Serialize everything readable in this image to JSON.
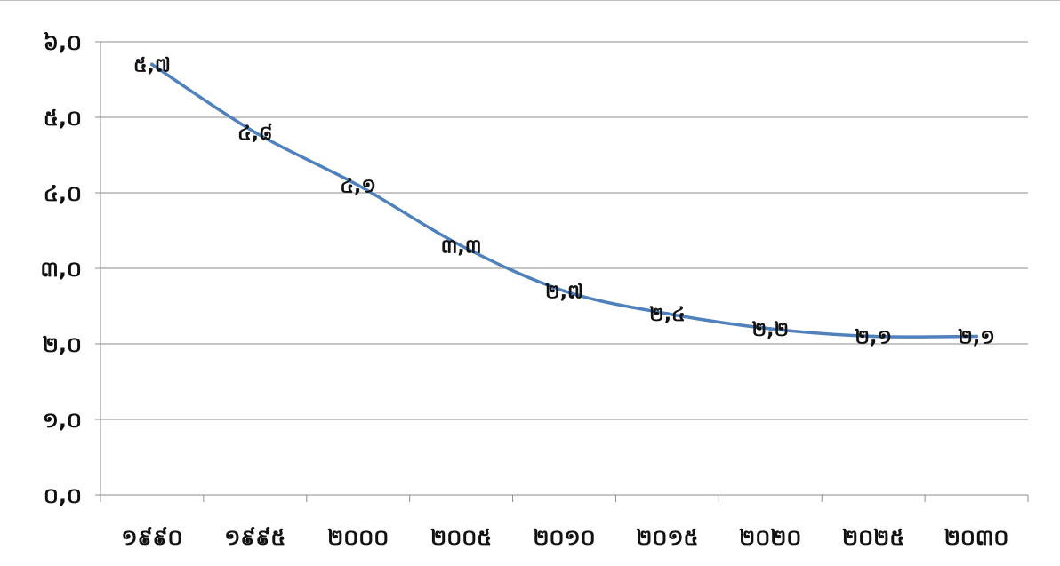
{
  "chart_data": {
    "type": "line",
    "categories": [
      "១៩៩០",
      "១៩៩៥",
      "២០០០",
      "២០០៥",
      "២០១០",
      "២០១៥",
      "២០២០",
      "២០២៥",
      "២០៣០"
    ],
    "series": [
      {
        "values": [
          5.7,
          4.8,
          4.1,
          3.3,
          2.7,
          2.4,
          2.2,
          2.1,
          2.1
        ]
      }
    ],
    "data_labels": [
      "៥,៧",
      "៤,៨",
      "៤,១",
      "៣,៣",
      "២,៧",
      "២,៤",
      "២,២",
      "២,១",
      "២,១"
    ],
    "y_ticks": [
      0,
      1,
      2,
      3,
      4,
      5,
      6
    ],
    "y_tick_labels": [
      "០,០",
      "១,០",
      "២,០",
      "៣,០",
      "៤,០",
      "៥,០",
      "៦,០"
    ],
    "ylim": [
      0,
      6
    ],
    "grid": true,
    "legend": "none",
    "title": "",
    "xlabel": "",
    "ylabel": "",
    "line_color": "#4f81bd",
    "grid_color": "#8c8c8c"
  }
}
